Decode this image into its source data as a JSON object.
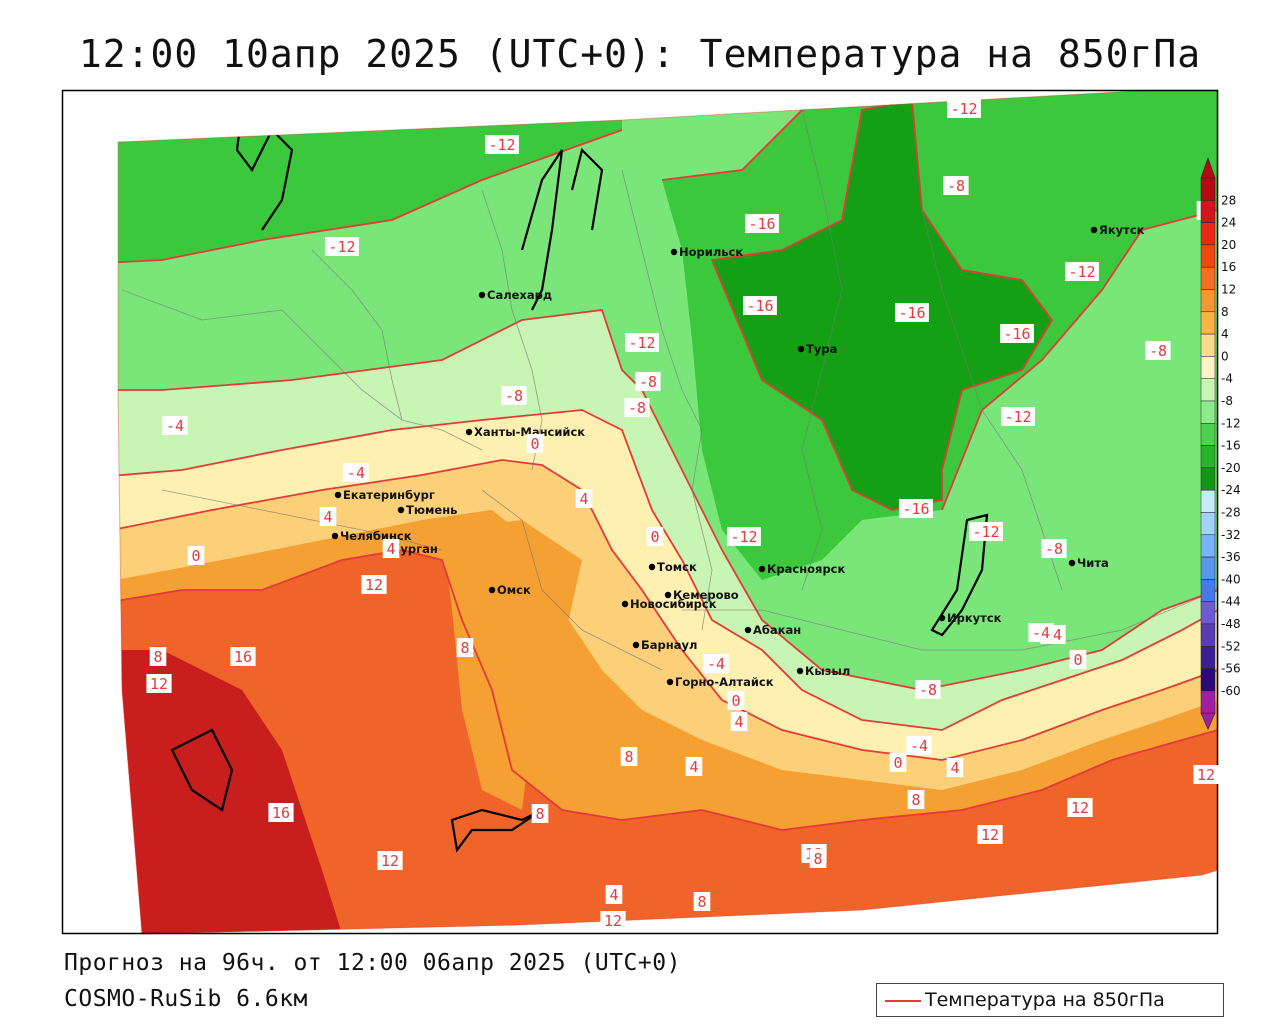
{
  "title": "12:00 10апр 2025 (UTC+0): Температура на 850гПа",
  "forecast_text": "Прогноз на 96ч. от 12:00 06апр 2025 (UTC+0)",
  "model_text": "COSMO-RuSib 6.6км",
  "legend_label": "Температура на 850гПа",
  "colors": {
    "contour": "#e43a3a",
    "land_outline": "#000000",
    "very_warm": "#c81e1e",
    "warm": "#f0642a",
    "mild_warm": "#f5a032",
    "mild": "#fbd078",
    "neutral": "#fdf0b0",
    "cool": "#c8f5b4",
    "cold": "#7ae67a",
    "very_cold": "#3cc83c",
    "extreme_cold": "#14a014"
  },
  "colorbar_ticks": [
    "28",
    "24",
    "20",
    "16",
    "12",
    "8",
    "4",
    "0",
    "-4",
    "-8",
    "-12",
    "-16",
    "-20",
    "-24",
    "-28",
    "-32",
    "-36",
    "-40",
    "-44",
    "-48",
    "-52",
    "-56",
    "-60"
  ],
  "colorbar_colors": [
    "#b40a14",
    "#d2141e",
    "#e62814",
    "#f04614",
    "#f56e28",
    "#f89632",
    "#fab446",
    "#fcdc8c",
    "#fdf5c8",
    "#c8f5b4",
    "#8cec8c",
    "#50d250",
    "#28b428",
    "#149614",
    "#c8ecfa",
    "#a0d2fa",
    "#78b4fa",
    "#5a96f0",
    "#4678e6",
    "#6e5ad2",
    "#5a3cb4",
    "#3c1e96",
    "#280a78",
    "#a01ea0"
  ],
  "cities": [
    {
      "name": "Салехард",
      "label": "Салехард"
    },
    {
      "name": "Норильск",
      "label": "Норильск"
    },
    {
      "name": "Якутск",
      "label": "Якутск"
    },
    {
      "name": "Тура",
      "label": "Тура"
    },
    {
      "name": "Ханты-Мансийск",
      "label": "Ханты-Мансийск"
    },
    {
      "name": "Екатеринбург",
      "label": "Екатеринбург"
    },
    {
      "name": "Тюмень",
      "label": "Тюмень"
    },
    {
      "name": "Челябинск",
      "label": "Челябинск"
    },
    {
      "name": "Курган",
      "label": "Курган"
    },
    {
      "name": "Омск",
      "label": "Омск"
    },
    {
      "name": "Новосибирск",
      "label": "Новосибирск"
    },
    {
      "name": "Томск",
      "label": "Томск"
    },
    {
      "name": "Кемерово",
      "label": "Кемерово"
    },
    {
      "name": "Барнаул",
      "label": "Барнаул"
    },
    {
      "name": "Горно-Алтайск",
      "label": "Горно-Алтайск"
    },
    {
      "name": "Красноярск",
      "label": "Красноярск"
    },
    {
      "name": "Абакан",
      "label": "Абакан"
    },
    {
      "name": "Кызыл",
      "label": "Кызыл"
    },
    {
      "name": "Иркутск",
      "label": "Иркутск"
    },
    {
      "name": "Чита",
      "label": "Чита"
    }
  ],
  "contour_labels": [
    "-12",
    "-12",
    "-12",
    "-8",
    "-16",
    "-16",
    "-16",
    "-16",
    "-16",
    "-12",
    "-12",
    "-8",
    "-12",
    "-8",
    "-8",
    "-4",
    "-8",
    "-4",
    "0",
    "4",
    "4",
    "0",
    "0",
    "8",
    "12",
    "4",
    "8",
    "16",
    "12",
    "8",
    "0",
    "4",
    "-4",
    "-12",
    "-12",
    "-8",
    "-8",
    "-4",
    "0",
    "4",
    "4",
    "8",
    "8",
    "8",
    "12",
    "12",
    "12",
    "16",
    "12",
    "8",
    "8",
    "12",
    "4",
    "0",
    "-4",
    "12",
    "-4"
  ]
}
